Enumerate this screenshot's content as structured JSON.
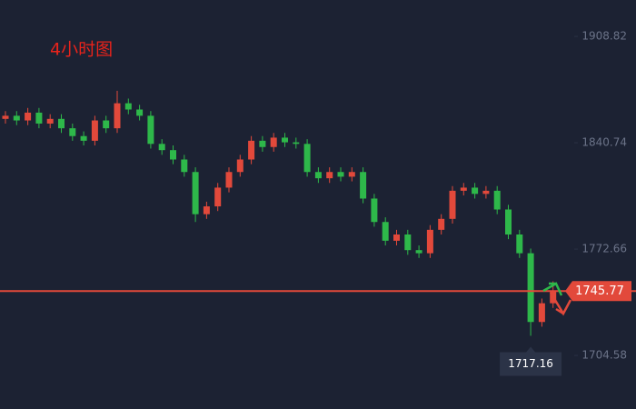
{
  "chart_data": {
    "type": "candlestick",
    "title": "4小时图",
    "open": [
      1856,
      1858,
      1855,
      1860,
      1853,
      1856,
      1850,
      1845,
      1842,
      1855,
      1850,
      1866,
      1862,
      1858,
      1840,
      1836,
      1830,
      1822,
      1795,
      1800,
      1812,
      1822,
      1830,
      1842,
      1838,
      1844,
      1841,
      1840,
      1822,
      1818,
      1822,
      1819,
      1822,
      1805,
      1790,
      1778,
      1782,
      1772,
      1770,
      1785,
      1792,
      1810,
      1812,
      1808,
      1810,
      1798,
      1782,
      1770,
      1726,
      1738
    ],
    "high": [
      1861,
      1861,
      1863,
      1863,
      1859,
      1859,
      1853,
      1848,
      1858,
      1858,
      1874,
      1869,
      1865,
      1861,
      1843,
      1839,
      1833,
      1825,
      1803,
      1815,
      1825,
      1833,
      1845,
      1845,
      1847,
      1847,
      1844,
      1843,
      1825,
      1825,
      1825,
      1825,
      1825,
      1808,
      1793,
      1785,
      1785,
      1775,
      1788,
      1795,
      1813,
      1815,
      1815,
      1813,
      1813,
      1801,
      1785,
      1773,
      1741,
      1752
    ],
    "low": [
      1853,
      1852,
      1852,
      1850,
      1850,
      1847,
      1842,
      1839,
      1839,
      1847,
      1847,
      1859,
      1855,
      1837,
      1833,
      1827,
      1819,
      1790,
      1792,
      1797,
      1809,
      1819,
      1827,
      1835,
      1835,
      1838,
      1837,
      1819,
      1815,
      1815,
      1816,
      1816,
      1802,
      1787,
      1775,
      1775,
      1769,
      1767,
      1767,
      1782,
      1789,
      1807,
      1805,
      1805,
      1795,
      1779,
      1767,
      1717.16,
      1723,
      1735
    ],
    "close": [
      1858,
      1855,
      1860,
      1853,
      1856,
      1850,
      1845,
      1842,
      1855,
      1850,
      1866,
      1862,
      1858,
      1840,
      1836,
      1830,
      1822,
      1795,
      1800,
      1812,
      1822,
      1830,
      1842,
      1838,
      1844,
      1841,
      1840,
      1822,
      1818,
      1822,
      1819,
      1822,
      1805,
      1790,
      1778,
      1782,
      1772,
      1770,
      1785,
      1792,
      1810,
      1812,
      1808,
      1810,
      1798,
      1782,
      1770,
      1726,
      1738,
      1745.77
    ],
    "up_color": "#e2493b",
    "down_color": "#2eb84a",
    "ylim": [
      1670.3,
      1932.1
    ],
    "yticks": [
      1908.82,
      1840.74,
      1772.66,
      1704.58
    ],
    "last_price": 1745.77,
    "last_price_color": "#e2493b",
    "low_annotation": 1717.16
  }
}
